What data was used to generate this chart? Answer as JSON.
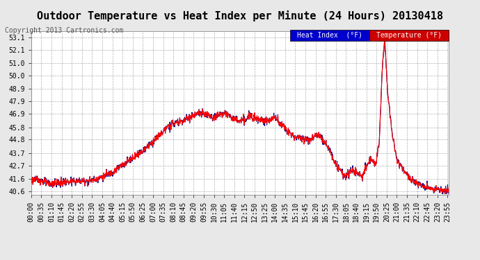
{
  "title": "Outdoor Temperature vs Heat Index per Minute (24 Hours) 20130418",
  "copyright": "Copyright 2013 Cartronics.com",
  "yticks": [
    40.6,
    41.6,
    42.7,
    43.7,
    44.8,
    45.8,
    46.9,
    47.9,
    48.9,
    50.0,
    51.0,
    52.1,
    53.1
  ],
  "ylim": [
    40.3,
    53.6
  ],
  "bg_color": "#e8e8e8",
  "plot_bg": "#ffffff",
  "grid_color": "#b0b0b0",
  "temp_color": "#ff0000",
  "heat_color": "#000080",
  "legend_heat_bg": "#0000cc",
  "legend_temp_bg": "#cc0000",
  "title_fontsize": 11,
  "copyright_fontsize": 7,
  "tick_fontsize": 7,
  "legend_fontsize": 7
}
